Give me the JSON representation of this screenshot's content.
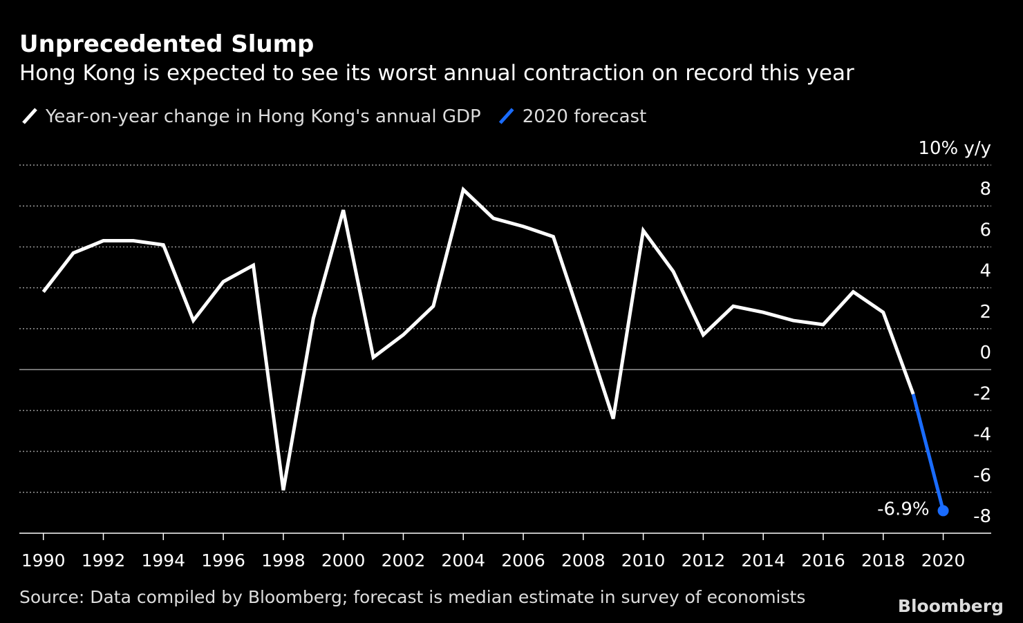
{
  "chart_data": {
    "type": "line",
    "title": "Unprecedented Slump",
    "subtitle": "Hong Kong is expected to see its worst annual contraction on record this year",
    "source": "Source: Data compiled by Bloomberg; forecast is median estimate in survey of economists",
    "brand": "Bloomberg",
    "x": [
      1990,
      1991,
      1992,
      1993,
      1994,
      1995,
      1996,
      1997,
      1998,
      1999,
      2000,
      2001,
      2002,
      2003,
      2004,
      2005,
      2006,
      2007,
      2008,
      2009,
      2010,
      2011,
      2012,
      2013,
      2014,
      2015,
      2016,
      2017,
      2018,
      2019,
      2020
    ],
    "series": [
      {
        "name": "Year-on-year change in Hong Kong's annual GDP",
        "color": "#ffffff",
        "values": [
          3.8,
          5.7,
          6.3,
          6.3,
          6.1,
          2.4,
          4.3,
          5.1,
          -5.9,
          2.5,
          7.8,
          0.6,
          1.7,
          3.1,
          8.8,
          7.4,
          7.0,
          6.5,
          2.1,
          -2.4,
          6.8,
          4.8,
          1.7,
          3.1,
          2.8,
          2.4,
          2.2,
          3.8,
          2.8,
          -1.2,
          null
        ]
      },
      {
        "name": "2020 forecast",
        "color": "#1a6cff",
        "values": [
          null,
          null,
          null,
          null,
          null,
          null,
          null,
          null,
          null,
          null,
          null,
          null,
          null,
          null,
          null,
          null,
          null,
          null,
          null,
          null,
          null,
          null,
          null,
          null,
          null,
          null,
          null,
          null,
          null,
          -1.2,
          -6.9
        ],
        "value_labels": [
          null,
          null,
          null,
          null,
          null,
          null,
          null,
          null,
          null,
          null,
          null,
          null,
          null,
          null,
          null,
          null,
          null,
          null,
          null,
          null,
          null,
          null,
          null,
          null,
          null,
          null,
          null,
          null,
          null,
          null,
          "-6.9%"
        ]
      }
    ],
    "xlim": [
      1989.2,
      2021.6
    ],
    "xticks": [
      1990,
      1992,
      1994,
      1996,
      1998,
      2000,
      2002,
      2004,
      2006,
      2008,
      2010,
      2012,
      2014,
      2016,
      2018,
      2020
    ],
    "ylim": [
      -8,
      10
    ],
    "yticks": [
      -8,
      -6,
      -4,
      -2,
      0,
      2,
      4,
      6,
      8,
      {
        "value": 10,
        "label": "10% y/y"
      }
    ],
    "grid": true
  }
}
